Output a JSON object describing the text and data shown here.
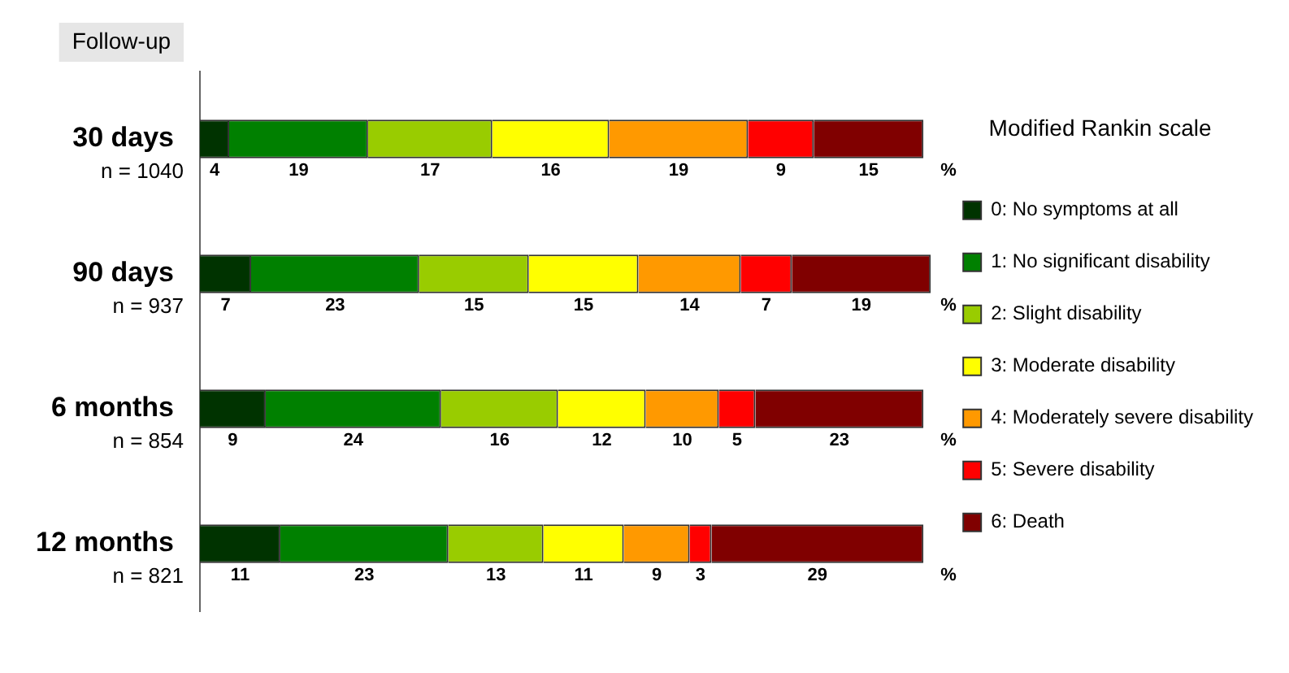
{
  "chart_data": {
    "type": "bar",
    "orientation": "horizontal",
    "stacked": true,
    "data_labels": true,
    "legend": "right",
    "ylabel": "Follow-up",
    "legend_title": "Modified Rankin scale",
    "categories": [
      "30 days",
      "90 days",
      "6 months",
      "12 months"
    ],
    "series": [
      {
        "name": "0: No symptoms at all",
        "color": "#003300",
        "values": [
          4,
          7,
          9,
          11
        ]
      },
      {
        "name": "1: No significant disability",
        "color": "#008000",
        "values": [
          19,
          23,
          24,
          23
        ]
      },
      {
        "name": "2: Slight disability",
        "color": "#99cc00",
        "values": [
          17,
          15,
          16,
          13
        ]
      },
      {
        "name": "3: Moderate disability",
        "color": "#ffff00",
        "values": [
          16,
          15,
          12,
          11
        ]
      },
      {
        "name": "4: Moderately severe disability",
        "color": "#ff9900",
        "values": [
          19,
          14,
          10,
          9
        ]
      },
      {
        "name": "5: Severe disability",
        "color": "#ff0000",
        "values": [
          9,
          7,
          5,
          3
        ]
      },
      {
        "name": "6: Death",
        "color": "#800000",
        "values": [
          15,
          19,
          23,
          29
        ]
      }
    ],
    "annotations": [
      "n = 1040",
      "n = 937",
      "n = 854",
      "n = 821",
      "%",
      "%",
      "%",
      "%"
    ]
  }
}
